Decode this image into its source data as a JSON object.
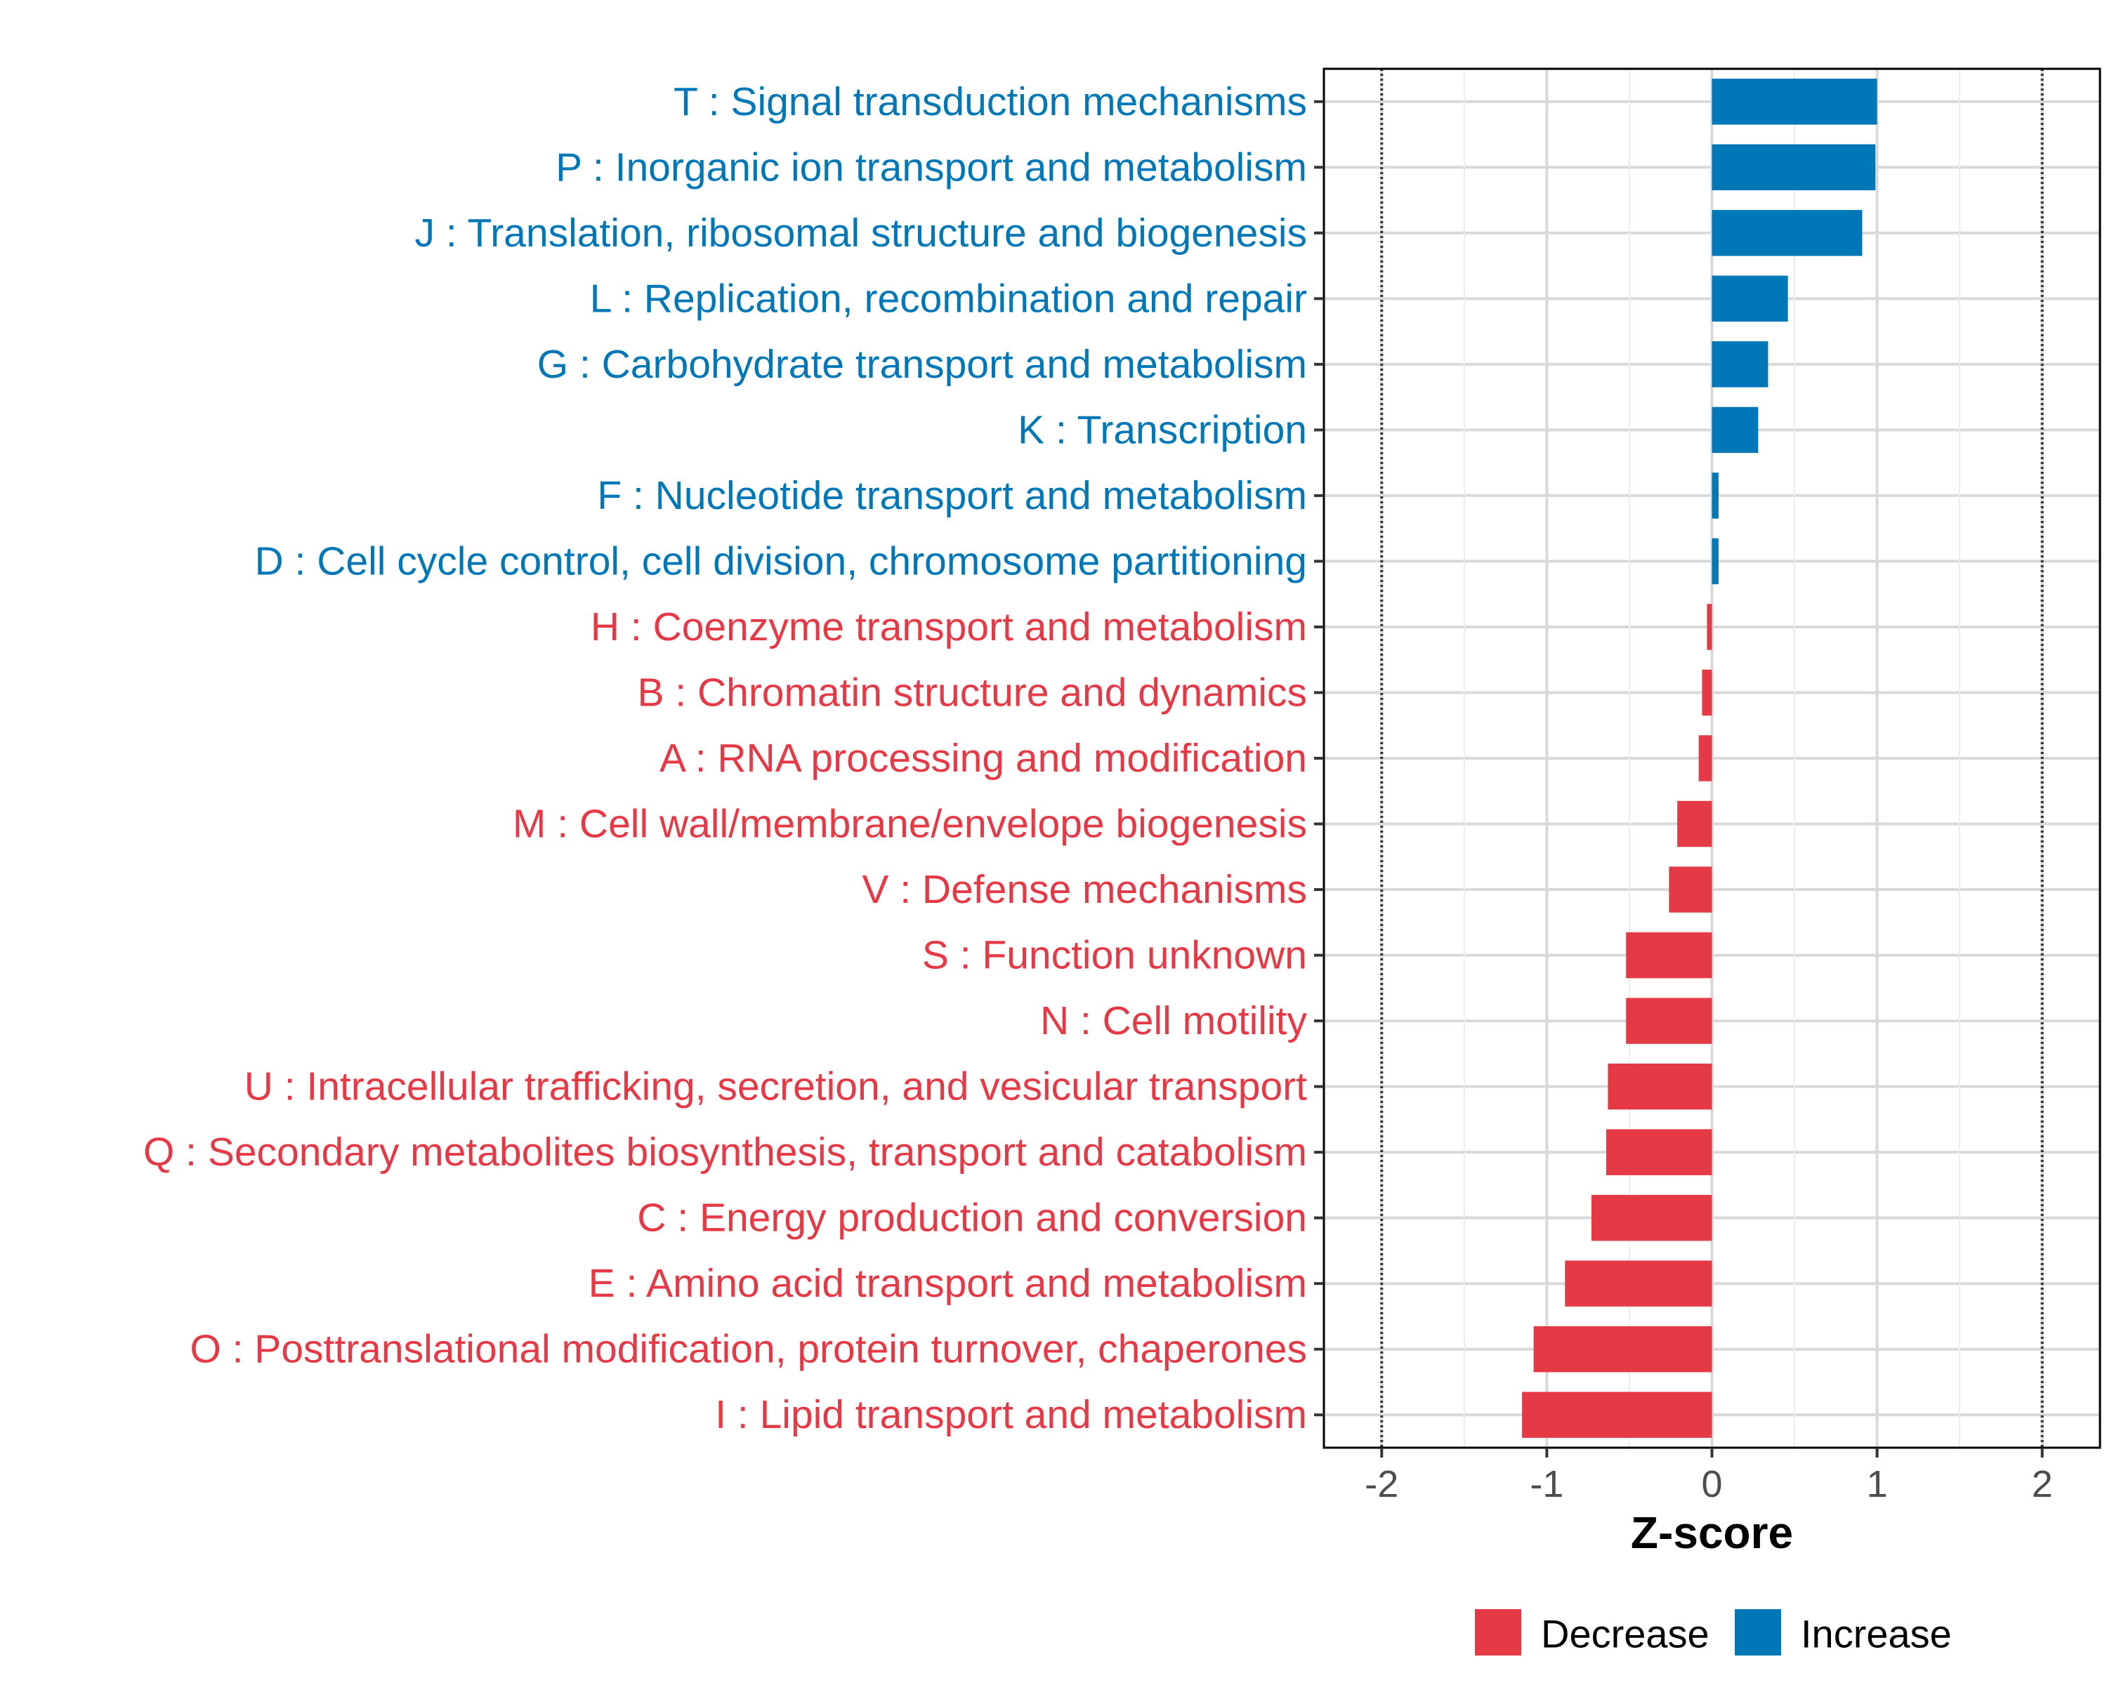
{
  "chart_data": {
    "type": "bar",
    "orientation": "horizontal",
    "title": "",
    "xlabel": "Z-score",
    "ylabel": "",
    "xlim": [
      -2.35,
      2.35
    ],
    "x_ticks": [
      -2,
      -1,
      0,
      1,
      2
    ],
    "x_tick_labels": [
      "-2",
      "-1",
      "0",
      "1",
      "2"
    ],
    "threshold_lines": [
      -2,
      2
    ],
    "grid": true,
    "legend_position": "bottom",
    "legend": [
      {
        "key": "decrease",
        "label": "Decrease",
        "color": "#e63946"
      },
      {
        "key": "increase",
        "label": "Increase",
        "color": "#0077b6"
      }
    ],
    "categories": [
      "T : Signal transduction mechanisms",
      "P : Inorganic ion transport and metabolism",
      "J : Translation, ribosomal structure and biogenesis",
      "L : Replication, recombination and repair",
      "G : Carbohydrate transport and metabolism",
      "K : Transcription",
      "F : Nucleotide transport and metabolism",
      "D : Cell cycle control, cell division, chromosome partitioning",
      "H : Coenzyme transport and metabolism",
      "B : Chromatin structure and dynamics",
      "A : RNA processing and modification",
      "M : Cell wall/membrane/envelope biogenesis",
      "V : Defense mechanisms",
      "S : Function unknown",
      "N : Cell motility",
      "U : Intracellular trafficking, secretion, and vesicular transport",
      "Q : Secondary metabolites biosynthesis, transport and catabolism",
      "C : Energy production and conversion",
      "E : Amino acid transport and metabolism",
      "O : Posttranslational modification, protein turnover, chaperones",
      "I : Lipid transport and metabolism"
    ],
    "values": [
      1.0,
      0.99,
      0.91,
      0.46,
      0.34,
      0.28,
      0.04,
      0.04,
      -0.03,
      -0.06,
      -0.08,
      -0.21,
      -0.26,
      -0.52,
      -0.52,
      -0.63,
      -0.64,
      -0.73,
      -0.89,
      -1.08,
      -1.15
    ]
  }
}
